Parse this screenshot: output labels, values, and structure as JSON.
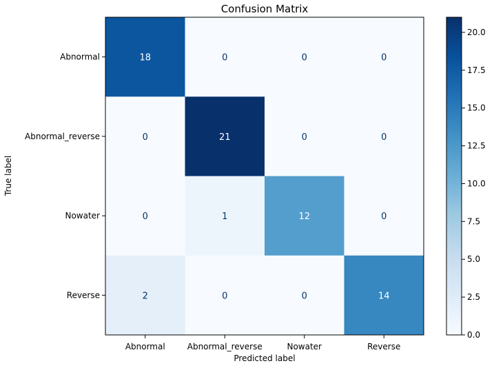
{
  "chart_data": {
    "type": "heatmap",
    "title": "Confusion Matrix",
    "xlabel": "Predicted label",
    "ylabel": "True label",
    "x_categories": [
      "Abnormal",
      "Abnormal_reverse",
      "Nowater",
      "Reverse"
    ],
    "y_categories": [
      "Abnormal",
      "Abnormal_reverse",
      "Nowater",
      "Reverse"
    ],
    "values": [
      [
        18,
        0,
        0,
        0
      ],
      [
        0,
        21,
        0,
        0
      ],
      [
        0,
        1,
        12,
        0
      ],
      [
        2,
        0,
        0,
        14
      ]
    ],
    "colormap": "Blues",
    "vmin": 0,
    "vmax": 21,
    "colorbar_ticks": [
      "0.0",
      "2.5",
      "5.0",
      "7.5",
      "10.0",
      "12.5",
      "15.0",
      "17.5",
      "20.0"
    ],
    "text_color_dark": "#08306b",
    "text_color_light": "#ffffff"
  }
}
